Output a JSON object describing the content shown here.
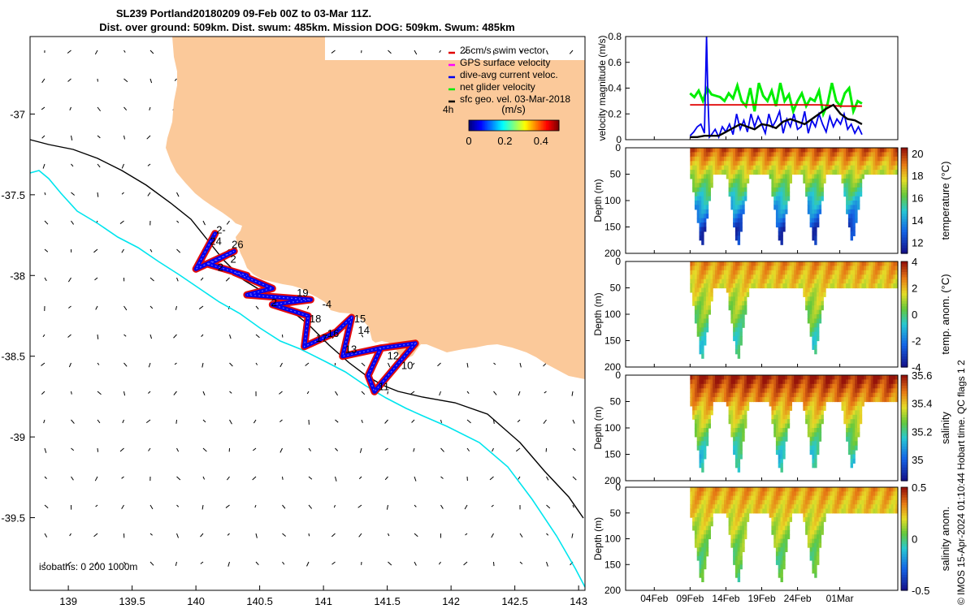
{
  "title": {
    "line1": "SL239 Portland20180209 09-Feb 00Z to 03-Mar 11Z.",
    "line2": "Dist. over ground: 509km. Dist. swum: 485km. Mission DOG: 509km. Swum: 485km"
  },
  "credit": "© IMOS 15-Apr-2024 01:10:44 Hobart time. QC flags 1  2",
  "colors": {
    "land": "#fbc99a",
    "isobath200": "#000000",
    "isobath1000": "#00e5ee",
    "swim_vector": "#e00000",
    "gps_velocity": "#ff00ff",
    "current_velocity": "#0000ee",
    "net_velocity": "#00ee00",
    "geo_velocity": "#000000"
  },
  "map": {
    "legend": [
      {
        "label": "25cm/s swim vector",
        "color": "#e00000"
      },
      {
        "label": "GPS surface velocity",
        "color": "#ff00ff"
      },
      {
        "label": "dive-avg current veloc.",
        "color": "#0000ee"
      },
      {
        "label": "net glider velocity",
        "color": "#00ee00"
      },
      {
        "label": "sfc geo. vel. 03-Mar-2018",
        "color": "#000000"
      }
    ],
    "label_4h": "4h",
    "colorbar_label": "(m/s)",
    "colorbar_ticks": [
      "0",
      "0.2",
      "0.4"
    ],
    "isobaths_note": "isobaths: 0  200  1000m",
    "x_ticks": [
      "139",
      "139.5",
      "140",
      "140.5",
      "141",
      "141.5",
      "142",
      "142.5",
      "143"
    ],
    "y_ticks": [
      "-37",
      "-37.5",
      "-38",
      "-38.5",
      "-39",
      "-39.5"
    ],
    "xlim": [
      138.7,
      143.05
    ],
    "ylim": [
      -39.95,
      -36.52
    ],
    "waypoint_labels": [
      {
        "text": "2-",
        "lon": 140.16,
        "lat": -37.74
      },
      {
        "text": "24",
        "lon": 140.11,
        "lat": -37.81
      },
      {
        "text": "26",
        "lon": 140.28,
        "lat": -37.83
      },
      {
        "text": "2",
        "lon": 140.27,
        "lat": -37.92
      },
      {
        "text": "2",
        "lon": 140.17,
        "lat": -37.97
      },
      {
        "text": "19",
        "lon": 140.79,
        "lat": -38.13
      },
      {
        "text": "2",
        "lon": 140.59,
        "lat": -38.19
      },
      {
        "text": "-4",
        "lon": 140.99,
        "lat": -38.2
      },
      {
        "text": "18",
        "lon": 140.89,
        "lat": -38.29
      },
      {
        "text": "15",
        "lon": 141.24,
        "lat": -38.29
      },
      {
        "text": "14",
        "lon": 141.27,
        "lat": -38.36
      },
      {
        "text": "16",
        "lon": 141.03,
        "lat": -38.38
      },
      {
        "text": "17",
        "lon": 140.94,
        "lat": -38.41
      },
      {
        "text": "13",
        "lon": 141.17,
        "lat": -38.48
      },
      {
        "text": "12",
        "lon": 141.5,
        "lat": -38.52
      },
      {
        "text": "10",
        "lon": 141.61,
        "lat": -38.58
      },
      {
        "text": "11",
        "lon": 141.43,
        "lat": -38.71
      }
    ]
  },
  "chart_data": [
    {
      "type": "line",
      "panel": "velocity",
      "ylabel": "velocity magnitude (m/s)",
      "ylim": [
        0,
        0.8
      ],
      "y_ticks": [
        "0",
        "0.2",
        "0.4",
        "0.6",
        "0.8"
      ],
      "x_range_days": [
        0,
        38
      ],
      "x_ticks": [
        "04Feb",
        "09Feb",
        "14Feb",
        "19Feb",
        "24Feb",
        "01Mar"
      ],
      "series": [
        {
          "color": "#00ee00",
          "x": [
            9.0,
            9.6,
            10.2,
            10.8,
            11.4,
            12,
            12.6,
            13.2,
            13.8,
            14.4,
            15,
            15.6,
            16.2,
            16.8,
            17.4,
            18,
            18.6,
            19.2,
            19.8,
            20.4,
            21,
            21.6,
            22.2,
            22.8,
            23.4,
            24,
            24.6,
            25.2,
            25.8,
            26.4,
            27,
            27.6,
            28.2,
            28.8,
            29.4,
            30,
            30.6,
            31.2,
            31.8,
            32.4,
            33
          ],
          "y": [
            0.36,
            0.33,
            0.38,
            0.3,
            0.4,
            0.35,
            0.34,
            0.33,
            0.3,
            0.36,
            0.32,
            0.42,
            0.3,
            0.26,
            0.4,
            0.22,
            0.44,
            0.34,
            0.3,
            0.38,
            0.26,
            0.44,
            0.3,
            0.35,
            0.22,
            0.3,
            0.36,
            0.26,
            0.32,
            0.3,
            0.38,
            0.2,
            0.28,
            0.44,
            0.3,
            0.26,
            0.36,
            0.4,
            0.22,
            0.3,
            0.28
          ]
        },
        {
          "color": "#e00000",
          "x": [
            9.0,
            12,
            15,
            18,
            21,
            24,
            27,
            30,
            33
          ],
          "y": [
            0.27,
            0.27,
            0.27,
            0.27,
            0.27,
            0.27,
            0.27,
            0.26,
            0.26
          ]
        },
        {
          "color": "#0000ee",
          "x": [
            9.0,
            9.5,
            10,
            10.5,
            11,
            11.3,
            11.5,
            11.7,
            12,
            12.5,
            13,
            13.5,
            14,
            14.5,
            15,
            15.5,
            16,
            16.5,
            17,
            17.5,
            18,
            18.5,
            19,
            19.5,
            20,
            20.5,
            21,
            21.5,
            22,
            22.5,
            23,
            23.5,
            24,
            24.5,
            25,
            25.5,
            26,
            26.5,
            27,
            27.5,
            28,
            28.5,
            29,
            29.5,
            30,
            30.5,
            31,
            31.5,
            32,
            32.5,
            33
          ],
          "y": [
            0.03,
            0.06,
            0.1,
            0.12,
            0.05,
            0.8,
            0.3,
            0.02,
            0.04,
            0.08,
            0.02,
            0.1,
            0.06,
            0.12,
            0.04,
            0.2,
            0.08,
            0.15,
            0.06,
            0.2,
            0.1,
            0.18,
            0.12,
            0.05,
            0.2,
            0.1,
            0.15,
            0.22,
            0.05,
            0.16,
            0.1,
            0.2,
            0.08,
            0.1,
            0.22,
            0.05,
            0.15,
            0.1,
            0.2,
            0.12,
            0.06,
            0.18,
            0.1,
            0.16,
            0.12,
            0.2,
            0.08,
            0.12,
            0.05,
            0.1,
            0.04
          ]
        },
        {
          "color": "#000000",
          "x": [
            9.0,
            10,
            11,
            12,
            13,
            14,
            15,
            16,
            17,
            18,
            19,
            20,
            21,
            22,
            23,
            24,
            25,
            26,
            27,
            28,
            29,
            30,
            31,
            32,
            33
          ],
          "y": [
            0.02,
            0.02,
            0.03,
            0.03,
            0.03,
            0.06,
            0.09,
            0.12,
            0.1,
            0.08,
            0.12,
            0.11,
            0.09,
            0.14,
            0.16,
            0.14,
            0.12,
            0.16,
            0.2,
            0.24,
            0.27,
            0.2,
            0.16,
            0.15,
            0.12
          ]
        }
      ]
    },
    {
      "type": "heatmap",
      "panel": "temperature",
      "ylabel": "Depth (m)",
      "colorbar_label": "temperature (°C)",
      "clim": [
        11,
        20.5
      ],
      "colorbar_ticks": [
        "12",
        "14",
        "16",
        "18",
        "20"
      ],
      "y_ticks": [
        "0",
        "50",
        "100",
        "150",
        "200"
      ],
      "ylim": [
        0,
        200
      ],
      "dive_troughs": [
        {
          "day": 10.5,
          "max_depth": 190
        },
        {
          "day": 15.5,
          "max_depth": 190
        },
        {
          "day": 21.5,
          "max_depth": 190
        },
        {
          "day": 26.2,
          "max_depth": 190
        },
        {
          "day": 31.5,
          "max_depth": 180
        }
      ],
      "surface_value": 19.5,
      "bottom_value": 12
    },
    {
      "type": "heatmap",
      "panel": "temp_anom",
      "ylabel": "Depth (m)",
      "colorbar_label": "temp. anom. (°C)",
      "clim": [
        -4,
        4
      ],
      "colorbar_ticks": [
        "-4",
        "-2",
        "0",
        "2",
        "4"
      ],
      "y_ticks": [
        "0",
        "50",
        "100",
        "150",
        "200"
      ],
      "ylim": [
        0,
        200
      ],
      "dive_troughs": [
        {
          "day": 10.5,
          "max_depth": 190
        },
        {
          "day": 15.5,
          "max_depth": 190
        },
        {
          "day": 26.2,
          "max_depth": 180
        }
      ],
      "surface_value": 2.5,
      "bottom_value": -0.5
    },
    {
      "type": "heatmap",
      "panel": "salinity",
      "ylabel": "Depth (m)",
      "colorbar_label": "salinity",
      "clim": [
        34.85,
        35.6
      ],
      "colorbar_ticks": [
        "35",
        "35.2",
        "35.4",
        "35.6"
      ],
      "y_ticks": [
        "0",
        "50",
        "100",
        "150",
        "200"
      ],
      "ylim": [
        0,
        200
      ],
      "dive_troughs": [
        {
          "day": 10.5,
          "max_depth": 190
        },
        {
          "day": 15.5,
          "max_depth": 190
        },
        {
          "day": 21.5,
          "max_depth": 190
        },
        {
          "day": 26.2,
          "max_depth": 185
        },
        {
          "day": 31.5,
          "max_depth": 180
        }
      ],
      "surface_value": 35.58,
      "bottom_value": 35.15
    },
    {
      "type": "heatmap",
      "panel": "salinity_anom",
      "ylabel": "Depth (m)",
      "colorbar_label": "salinity anom.",
      "clim": [
        -0.5,
        0.5
      ],
      "colorbar_ticks": [
        "-0.5",
        "0",
        "0.5"
      ],
      "y_ticks": [
        "0",
        "50",
        "100",
        "150",
        "200"
      ],
      "ylim": [
        0,
        200
      ],
      "dive_troughs": [
        {
          "day": 10.5,
          "max_depth": 190
        },
        {
          "day": 15.5,
          "max_depth": 190
        },
        {
          "day": 21.5,
          "max_depth": 190
        },
        {
          "day": 26.2,
          "max_depth": 180
        }
      ],
      "surface_value": 0.3,
      "bottom_value": 0.0
    }
  ]
}
